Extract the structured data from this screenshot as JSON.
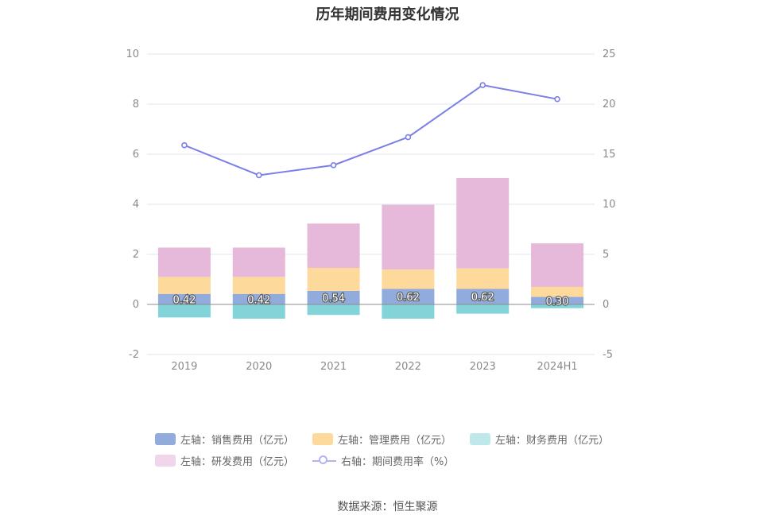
{
  "chart_data": {
    "type": "bar",
    "title": "历年期间费用变化情况",
    "categories": [
      "2019",
      "2020",
      "2021",
      "2022",
      "2023",
      "2024H1"
    ],
    "y_left": {
      "ylim": [
        -2,
        10
      ],
      "ticks": [
        "-2",
        "0",
        "2",
        "4",
        "6",
        "8",
        "10"
      ]
    },
    "y_right": {
      "ylim": [
        -5,
        25
      ],
      "ticks": [
        "-5",
        "0",
        "5",
        "10",
        "15",
        "20",
        "25"
      ]
    },
    "series": [
      {
        "name": "左轴：销售费用（亿元）",
        "type": "bar",
        "axis": "left",
        "stack": "cost",
        "color": "#91acdc",
        "values": [
          0.42,
          0.42,
          0.54,
          0.62,
          0.62,
          0.3
        ],
        "labels": [
          "0.42",
          "0.42",
          "0.54",
          "0.62",
          "0.62",
          "0.30"
        ]
      },
      {
        "name": "左轴：管理费用（亿元）",
        "type": "bar",
        "axis": "left",
        "stack": "cost",
        "color": "#fdd99b",
        "values": [
          0.68,
          0.68,
          0.92,
          0.78,
          0.82,
          0.4
        ]
      },
      {
        "name": "左轴：财务费用（亿元）",
        "type": "bar",
        "axis": "left",
        "stack": "cost",
        "color": "#82d4d9",
        "values": [
          -0.52,
          -0.57,
          -0.42,
          -0.57,
          -0.37,
          -0.15
        ]
      },
      {
        "name": "左轴：研发费用（亿元）",
        "type": "bar",
        "axis": "left",
        "stack": "cost",
        "color": "#e6b8d9",
        "values": [
          1.17,
          1.17,
          1.77,
          2.58,
          3.61,
          1.74
        ]
      },
      {
        "name": "右轴：期间费用率（%）",
        "type": "line",
        "axis": "right",
        "color": "#7b7fe8",
        "values": [
          15.9,
          12.9,
          13.9,
          16.7,
          21.9,
          20.5
        ]
      }
    ],
    "legend_position": "bottom",
    "grid": true
  },
  "legend": [
    {
      "label": "左轴：销售费用（亿元）",
      "color": "#91acdc",
      "kind": "bar"
    },
    {
      "label": "左轴：管理费用（亿元）",
      "color": "#fdd99b",
      "kind": "bar"
    },
    {
      "label": "左轴：财务费用（亿元）",
      "color": "#bfe8ea",
      "kind": "bar"
    },
    {
      "label": "左轴：研发费用（亿元）",
      "color": "#f1d5ea",
      "kind": "bar"
    },
    {
      "label": "右轴：期间费用率（%）",
      "color": "#b2b4f1",
      "kind": "line"
    }
  ],
  "source": "数据来源：恒生聚源"
}
